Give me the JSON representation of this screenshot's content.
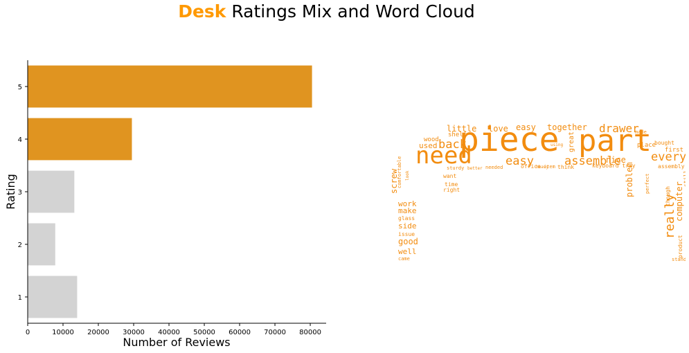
{
  "title": {
    "accent": "Desk",
    "rest": "Ratings Mix and Word Cloud"
  },
  "colors": {
    "accent": "#FF9900",
    "highlight_bar": "#E09420",
    "muted_bar": "#D3D3D3",
    "cloud": "#F28C0F"
  },
  "chart_data": {
    "type": "bar",
    "orientation": "horizontal",
    "categories": [
      "5",
      "4",
      "3",
      "2",
      "1"
    ],
    "values": [
      80500,
      29500,
      13200,
      7800,
      14000
    ],
    "highlighted": [
      true,
      true,
      false,
      false,
      false
    ],
    "xlabel": "Number of Reviews",
    "ylabel": "Rating",
    "xlim": [
      0,
      84500
    ],
    "xticks": [
      0,
      10000,
      20000,
      30000,
      40000,
      50000,
      60000,
      70000,
      80000
    ],
    "grid": false
  },
  "word_cloud": {
    "words": [
      {
        "t": "piece",
        "s": 1.0
      },
      {
        "t": "part",
        "s": 0.95
      },
      {
        "t": "need",
        "s": 0.8
      },
      {
        "t": "easy",
        "s": 0.42
      },
      {
        "t": "assemble",
        "s": 0.42
      },
      {
        "t": "everything",
        "s": 0.42
      },
      {
        "t": "back",
        "s": 0.4
      },
      {
        "t": "drawer",
        "s": 0.38
      },
      {
        "t": "really",
        "s": 0.38
      },
      {
        "t": "little",
        "s": 0.3
      },
      {
        "t": "love",
        "s": 0.3
      },
      {
        "t": "easy",
        "s": 0.3
      },
      {
        "t": "together",
        "s": 0.3
      },
      {
        "t": "nice",
        "s": 0.3
      },
      {
        "t": "screw",
        "s": 0.3
      },
      {
        "t": "problem",
        "s": 0.28
      },
      {
        "t": "computer",
        "s": 0.28
      },
      {
        "t": "work",
        "s": 0.26
      },
      {
        "t": "make",
        "s": 0.26
      },
      {
        "t": "side",
        "s": 0.26
      },
      {
        "t": "good",
        "s": 0.28
      },
      {
        "t": "well",
        "s": 0.26
      },
      {
        "t": "used",
        "s": 0.24
      },
      {
        "t": "great",
        "s": 0.22
      },
      {
        "t": "office",
        "s": 0.18
      },
      {
        "t": "keyboard tray",
        "s": 0.18
      },
      {
        "t": "sturdy",
        "s": 0.16
      },
      {
        "t": "better",
        "s": 0.14
      },
      {
        "t": "needed",
        "s": 0.14
      },
      {
        "t": "item",
        "s": 0.14
      },
      {
        "t": "think",
        "s": 0.16
      },
      {
        "t": "place",
        "s": 0.18
      },
      {
        "t": "first",
        "s": 0.16
      },
      {
        "t": "bought",
        "s": 0.14
      },
      {
        "t": "assembly",
        "s": 0.14
      },
      {
        "t": "still",
        "s": 0.16
      },
      {
        "t": "though",
        "s": 0.16
      },
      {
        "t": "product",
        "s": 0.16
      },
      {
        "t": "comfortable",
        "s": 0.14
      },
      {
        "t": "glass",
        "s": 0.14
      },
      {
        "t": "issue",
        "s": 0.14
      },
      {
        "t": "time",
        "s": 0.14
      },
      {
        "t": "right",
        "s": 0.14
      },
      {
        "t": "want",
        "s": 0.14
      },
      {
        "t": "shelf",
        "s": 0.16
      },
      {
        "t": "wood",
        "s": 0.16
      },
      {
        "t": "made",
        "s": 0.14
      },
      {
        "t": "came",
        "s": 0.14
      },
      {
        "t": "perfect",
        "s": 0.14
      },
      {
        "t": "stand",
        "s": 0.12
      },
      {
        "t": "heavy",
        "s": 0.12
      },
      {
        "t": "using",
        "s": 0.12
      },
      {
        "t": "look",
        "s": 0.12
      }
    ]
  }
}
